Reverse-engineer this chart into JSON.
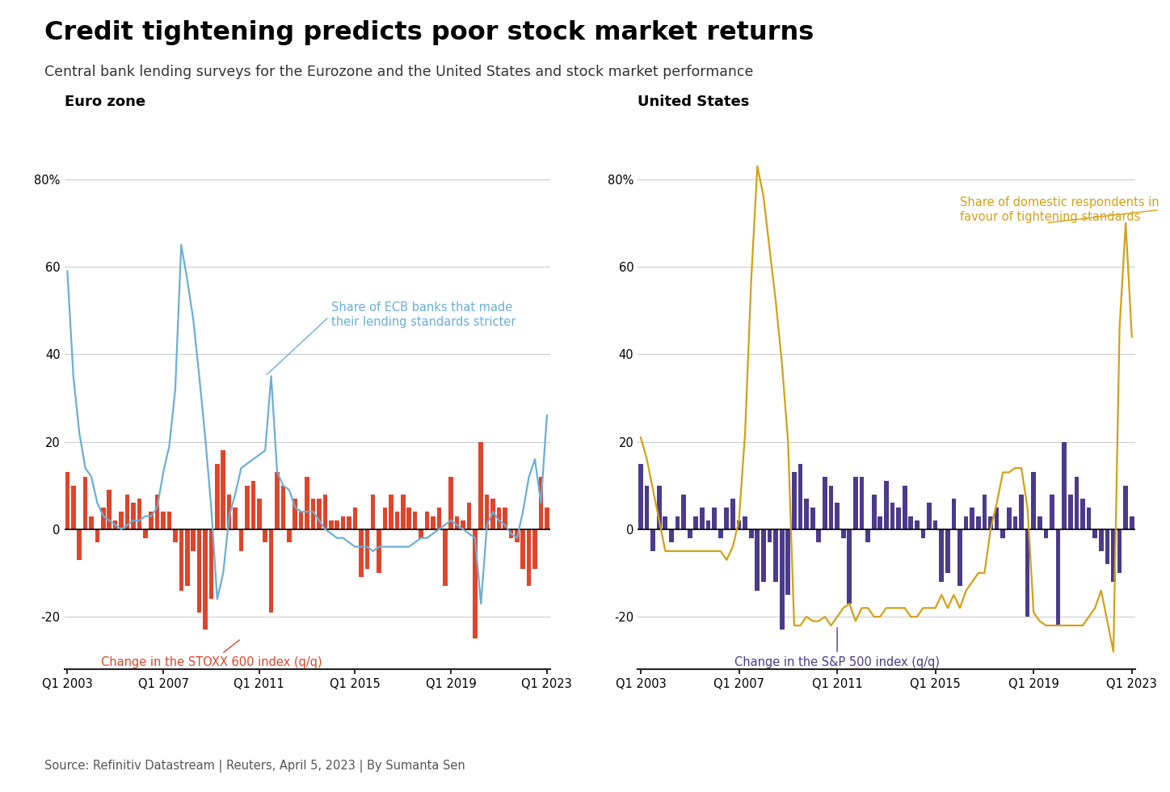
{
  "title": "Credit tightening predicts poor stock market returns",
  "subtitle": "Central bank lending surveys for the Eurozone and the United States and stock market performance",
  "source": "Source: Refinitiv Datastream | Reuters, April 5, 2023 | By Sumanta Sen",
  "left_title": "Euro zone",
  "right_title": "United States",
  "xtick_labels": [
    "Q1 2003",
    "Q1 2007",
    "Q1 2011",
    "Q1 2015",
    "Q1 2019",
    "Q1 2023"
  ],
  "ylim": [
    -32,
    92
  ],
  "yticks": [
    -20,
    0,
    20,
    40,
    60,
    80
  ],
  "ecb_line_color": "#6baed6",
  "stoxx_bar_color": "#e0442a",
  "fed_line_color": "#d4a017",
  "sp500_bar_color": "#4a3b8c",
  "ecb_label": "Share of ECB banks that made\ntheir lending standards stricter",
  "stoxx_label": "Change in the STOXX 600 index (q/q)",
  "fed_label": "Share of domestic respondents in\nfavour of tightening standards",
  "sp500_label": "Change in the S&P 500 index (q/q)",
  "ecb_line": [
    59,
    35,
    22,
    14,
    12,
    6,
    3,
    2,
    1,
    0,
    1,
    2,
    2,
    3,
    3,
    5,
    13,
    19,
    32,
    65,
    57,
    48,
    35,
    21,
    5,
    -16,
    -10,
    3,
    8,
    14,
    15,
    16,
    17,
    18,
    35,
    13,
    10,
    9,
    5,
    4,
    4,
    4,
    2,
    0,
    -1,
    -2,
    -2,
    -3,
    -4,
    -4,
    -4,
    -5,
    -4,
    -4,
    -4,
    -4,
    -4,
    -4,
    -3,
    -2,
    -2,
    -1,
    0,
    1,
    2,
    1,
    0,
    -1,
    -2,
    -17,
    1,
    4,
    2,
    1,
    -1,
    -2,
    4,
    12,
    16,
    6,
    26
  ],
  "stoxx_bars": [
    13,
    10,
    -7,
    12,
    3,
    -3,
    5,
    9,
    2,
    4,
    8,
    6,
    7,
    -2,
    4,
    8,
    4,
    4,
    -3,
    -14,
    -13,
    -5,
    -19,
    -23,
    -16,
    15,
    18,
    8,
    5,
    -5,
    10,
    11,
    7,
    -3,
    -19,
    13,
    10,
    -3,
    7,
    4,
    12,
    7,
    7,
    8,
    2,
    2,
    3,
    3,
    5,
    -11,
    -9,
    8,
    -10,
    5,
    8,
    4,
    8,
    5,
    4,
    -2,
    4,
    3,
    5,
    -13,
    12,
    3,
    2,
    6,
    -25,
    20,
    8,
    7,
    5,
    5,
    -2,
    -3,
    -9,
    -13,
    -9,
    12,
    5
  ],
  "fed_line": [
    21,
    16,
    9,
    2,
    -5,
    -5,
    -5,
    -5,
    -5,
    -5,
    -5,
    -5,
    -5,
    -5,
    -7,
    -4,
    2,
    22,
    57,
    83,
    76,
    64,
    52,
    38,
    20,
    -22,
    -22,
    -20,
    -21,
    -21,
    -20,
    -22,
    -20,
    -18,
    -17,
    -21,
    -18,
    -18,
    -20,
    -20,
    -18,
    -18,
    -18,
    -18,
    -20,
    -20,
    -18,
    -18,
    -18,
    -15,
    -18,
    -15,
    -18,
    -14,
    -12,
    -10,
    -10,
    0,
    6,
    13,
    13,
    14,
    14,
    5,
    -19,
    -21,
    -22,
    -22,
    -22,
    -22,
    -22,
    -22,
    -22,
    -20,
    -18,
    -14,
    -21,
    -28,
    46,
    70,
    44
  ],
  "sp500_bars": [
    15,
    10,
    -5,
    10,
    3,
    -3,
    3,
    8,
    -2,
    3,
    5,
    2,
    5,
    -2,
    5,
    7,
    2,
    3,
    -2,
    -14,
    -12,
    -3,
    -12,
    -23,
    -15,
    13,
    15,
    7,
    5,
    -3,
    12,
    10,
    6,
    -2,
    -17,
    12,
    12,
    -3,
    8,
    3,
    11,
    6,
    5,
    10,
    3,
    2,
    -2,
    6,
    2,
    -12,
    -10,
    7,
    -13,
    3,
    5,
    3,
    8,
    3,
    5,
    -2,
    5,
    3,
    8,
    -20,
    13,
    3,
    -2,
    8,
    -22,
    20,
    8,
    12,
    7,
    5,
    -2,
    -5,
    -8,
    -12,
    -10,
    10,
    3
  ]
}
